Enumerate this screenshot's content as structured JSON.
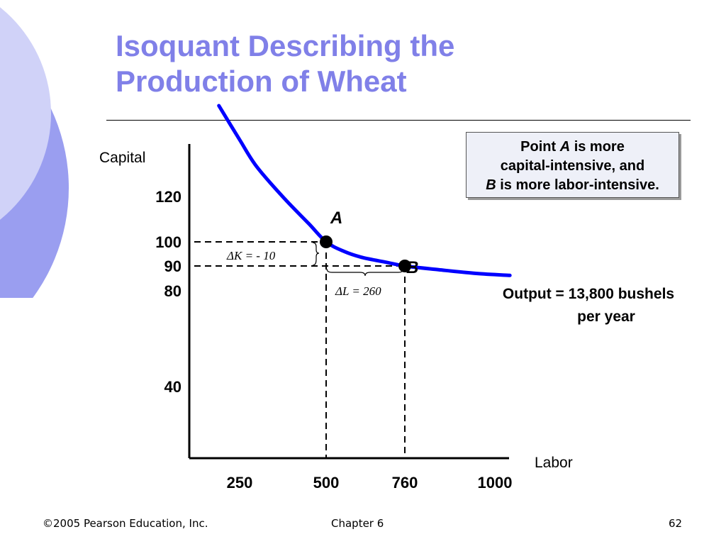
{
  "slide": {
    "title_line1": "Isoquant Describing the",
    "title_line2": "Production of Wheat",
    "footer_copyright": "©2005 Pearson Education, Inc.",
    "footer_chapter": "Chapter 6",
    "footer_page": "62",
    "accent_color": "#8080e8"
  },
  "callout": {
    "line1_pre": "Point ",
    "line1_em": "A",
    "line1_post": " is more",
    "line2": "capital-intensive, and",
    "line3_em": "B",
    "line3_post": " is more labor-intensive."
  },
  "chart_data": {
    "type": "line",
    "xlabel": "Labor",
    "ylabel": "Capital",
    "x_ticks": [
      "250",
      "500",
      "760",
      "1000"
    ],
    "y_ticks": [
      "120",
      "100",
      "90",
      "80",
      "40"
    ],
    "series": [
      {
        "name": "Output = 13,800 bushels per year",
        "color": "#0000ff",
        "x": [
          190,
          250,
          300,
          380,
          450,
          500,
          560,
          620,
          700,
          760,
          850,
          950,
          1040
        ],
        "y": [
          160,
          145,
          133,
          119,
          108,
          100,
          96,
          93.5,
          91.5,
          90,
          88.5,
          87,
          86.2
        ]
      }
    ],
    "points": [
      {
        "label": "A",
        "x": 500,
        "y": 100
      },
      {
        "label": "B",
        "x": 760,
        "y": 90
      }
    ],
    "annotations": {
      "delta_k": "ΔK  =  - 10",
      "delta_l": "ΔL  =  260"
    }
  }
}
